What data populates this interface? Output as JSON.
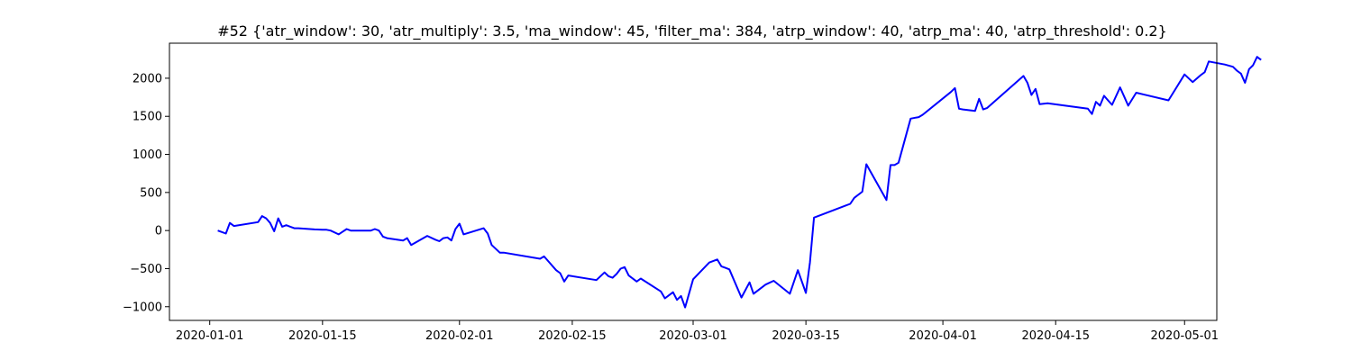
{
  "chart_data": {
    "type": "line",
    "title": "#52 {'atr_window': 30, 'atr_multiply': 3.5, 'ma_window': 45, 'filter_ma': 384, 'atrp_window': 40, 'atrp_ma': 40, 'atrp_threshold': 0.2}",
    "xlabel": "",
    "ylabel": "",
    "grid": false,
    "line_color": "#0000ff",
    "xlim": [
      "2019-12-27",
      "2020-05-05"
    ],
    "ylim": [
      -1180,
      2460
    ],
    "x_ticks": [
      "2020-01-01",
      "2020-01-15",
      "2020-02-01",
      "2020-02-15",
      "2020-03-01",
      "2020-03-15",
      "2020-04-01",
      "2020-04-15",
      "2020-05-01"
    ],
    "y_ticks": [
      -1000,
      -500,
      0,
      500,
      1000,
      1500,
      2000
    ],
    "series": [
      {
        "points": [
          [
            "2020-01-02",
            0
          ],
          [
            "2020-01-02 12:00",
            -20
          ],
          [
            "2020-01-03",
            -40
          ],
          [
            "2020-01-03 12:00",
            100
          ],
          [
            "2020-01-04",
            60
          ],
          [
            "2020-01-07",
            110
          ],
          [
            "2020-01-07 12:00",
            190
          ],
          [
            "2020-01-08",
            160
          ],
          [
            "2020-01-08 12:00",
            100
          ],
          [
            "2020-01-09",
            -10
          ],
          [
            "2020-01-09 12:00",
            160
          ],
          [
            "2020-01-10",
            50
          ],
          [
            "2020-01-10 12:00",
            70
          ],
          [
            "2020-01-11",
            50
          ],
          [
            "2020-01-11 12:00",
            30
          ],
          [
            "2020-01-12",
            30
          ],
          [
            "2020-01-14",
            15
          ],
          [
            "2020-01-15",
            10
          ],
          [
            "2020-01-15 12:00",
            10
          ],
          [
            "2020-01-16",
            0
          ],
          [
            "2020-01-17",
            -50
          ],
          [
            "2020-01-18",
            20
          ],
          [
            "2020-01-18 12:00",
            0
          ],
          [
            "2020-01-21",
            0
          ],
          [
            "2020-01-21 12:00",
            20
          ],
          [
            "2020-01-22",
            0
          ],
          [
            "2020-01-22 12:00",
            -80
          ],
          [
            "2020-01-23",
            -100
          ],
          [
            "2020-01-25",
            -130
          ],
          [
            "2020-01-25 12:00",
            -100
          ],
          [
            "2020-01-26",
            -190
          ],
          [
            "2020-01-28",
            -70
          ],
          [
            "2020-01-29",
            -120
          ],
          [
            "2020-01-29 12:00",
            -140
          ],
          [
            "2020-01-30",
            -100
          ],
          [
            "2020-01-30 12:00",
            -90
          ],
          [
            "2020-01-31",
            -130
          ],
          [
            "2020-01-31 12:00",
            20
          ],
          [
            "2020-02-01",
            90
          ],
          [
            "2020-02-01 12:00",
            -50
          ],
          [
            "2020-02-04",
            30
          ],
          [
            "2020-02-04 12:00",
            -40
          ],
          [
            "2020-02-05",
            -190
          ],
          [
            "2020-02-06",
            -290
          ],
          [
            "2020-02-06 12:00",
            -290
          ],
          [
            "2020-02-11",
            -370
          ],
          [
            "2020-02-11 12:00",
            -340
          ],
          [
            "2020-02-12",
            -400
          ],
          [
            "2020-02-13",
            -520
          ],
          [
            "2020-02-13 12:00",
            -560
          ],
          [
            "2020-02-14",
            -670
          ],
          [
            "2020-02-14 12:00",
            -590
          ],
          [
            "2020-02-18",
            -650
          ],
          [
            "2020-02-19",
            -550
          ],
          [
            "2020-02-19 12:00",
            -600
          ],
          [
            "2020-02-20",
            -620
          ],
          [
            "2020-02-20 12:00",
            -570
          ],
          [
            "2020-02-21",
            -500
          ],
          [
            "2020-02-21 12:00",
            -480
          ],
          [
            "2020-02-22",
            -590
          ],
          [
            "2020-02-23",
            -670
          ],
          [
            "2020-02-23 12:00",
            -630
          ],
          [
            "2020-02-26",
            -800
          ],
          [
            "2020-02-26 12:00",
            -890
          ],
          [
            "2020-02-27",
            -850
          ],
          [
            "2020-02-27 12:00",
            -810
          ],
          [
            "2020-02-28",
            -910
          ],
          [
            "2020-02-28 12:00",
            -860
          ],
          [
            "2020-02-29",
            -1010
          ],
          [
            "2020-03-01",
            -640
          ],
          [
            "2020-03-03",
            -420
          ],
          [
            "2020-03-04",
            -380
          ],
          [
            "2020-03-04 12:00",
            -470
          ],
          [
            "2020-03-05",
            -490
          ],
          [
            "2020-03-05 12:00",
            -510
          ],
          [
            "2020-03-07",
            -880
          ],
          [
            "2020-03-08",
            -680
          ],
          [
            "2020-03-08 12:00",
            -830
          ],
          [
            "2020-03-10",
            -710
          ],
          [
            "2020-03-11",
            -660
          ],
          [
            "2020-03-13",
            -830
          ],
          [
            "2020-03-14",
            -520
          ],
          [
            "2020-03-15",
            -820
          ],
          [
            "2020-03-15 12:00",
            -420
          ],
          [
            "2020-03-16",
            170
          ],
          [
            "2020-03-20",
            330
          ],
          [
            "2020-03-20 12:00",
            350
          ],
          [
            "2020-03-21",
            430
          ],
          [
            "2020-03-22",
            510
          ],
          [
            "2020-03-22 12:00",
            870
          ],
          [
            "2020-03-25",
            400
          ],
          [
            "2020-03-25 12:00",
            860
          ],
          [
            "2020-03-26",
            860
          ],
          [
            "2020-03-26 12:00",
            890
          ],
          [
            "2020-03-28",
            1470
          ],
          [
            "2020-03-29",
            1490
          ],
          [
            "2020-03-29 12:00",
            1520
          ],
          [
            "2020-04-02",
            1820
          ],
          [
            "2020-04-02 12:00",
            1870
          ],
          [
            "2020-04-03",
            1600
          ],
          [
            "2020-04-03 12:00",
            1590
          ],
          [
            "2020-04-05",
            1570
          ],
          [
            "2020-04-05 12:00",
            1730
          ],
          [
            "2020-04-06",
            1590
          ],
          [
            "2020-04-06 12:00",
            1610
          ],
          [
            "2020-04-11",
            2030
          ],
          [
            "2020-04-11 12:00",
            1940
          ],
          [
            "2020-04-12",
            1780
          ],
          [
            "2020-04-12 12:00",
            1860
          ],
          [
            "2020-04-13",
            1660
          ],
          [
            "2020-04-14",
            1670
          ],
          [
            "2020-04-19",
            1600
          ],
          [
            "2020-04-19 12:00",
            1530
          ],
          [
            "2020-04-20",
            1690
          ],
          [
            "2020-04-20 12:00",
            1640
          ],
          [
            "2020-04-21",
            1770
          ],
          [
            "2020-04-21 12:00",
            1710
          ],
          [
            "2020-04-22",
            1650
          ],
          [
            "2020-04-23",
            1880
          ],
          [
            "2020-04-23 12:00",
            1760
          ],
          [
            "2020-04-24",
            1640
          ],
          [
            "2020-04-25",
            1810
          ],
          [
            "2020-04-29",
            1710
          ],
          [
            "2020-04-30",
            1880
          ],
          [
            "2020-05-01",
            2050
          ],
          [
            "2020-05-02",
            1950
          ],
          [
            "2020-05-03",
            2040
          ],
          [
            "2020-05-03 12:00",
            2080
          ],
          [
            "2020-05-04",
            2220
          ],
          [
            "2020-05-06",
            2180
          ],
          [
            "2020-05-07",
            2150
          ],
          [
            "2020-05-07 12:00",
            2100
          ],
          [
            "2020-05-08",
            2060
          ],
          [
            "2020-05-08 12:00",
            1940
          ],
          [
            "2020-05-09",
            2120
          ],
          [
            "2020-05-09 12:00",
            2170
          ],
          [
            "2020-05-10",
            2280
          ],
          [
            "2020-05-10 12:00",
            2240
          ]
        ]
      }
    ]
  }
}
